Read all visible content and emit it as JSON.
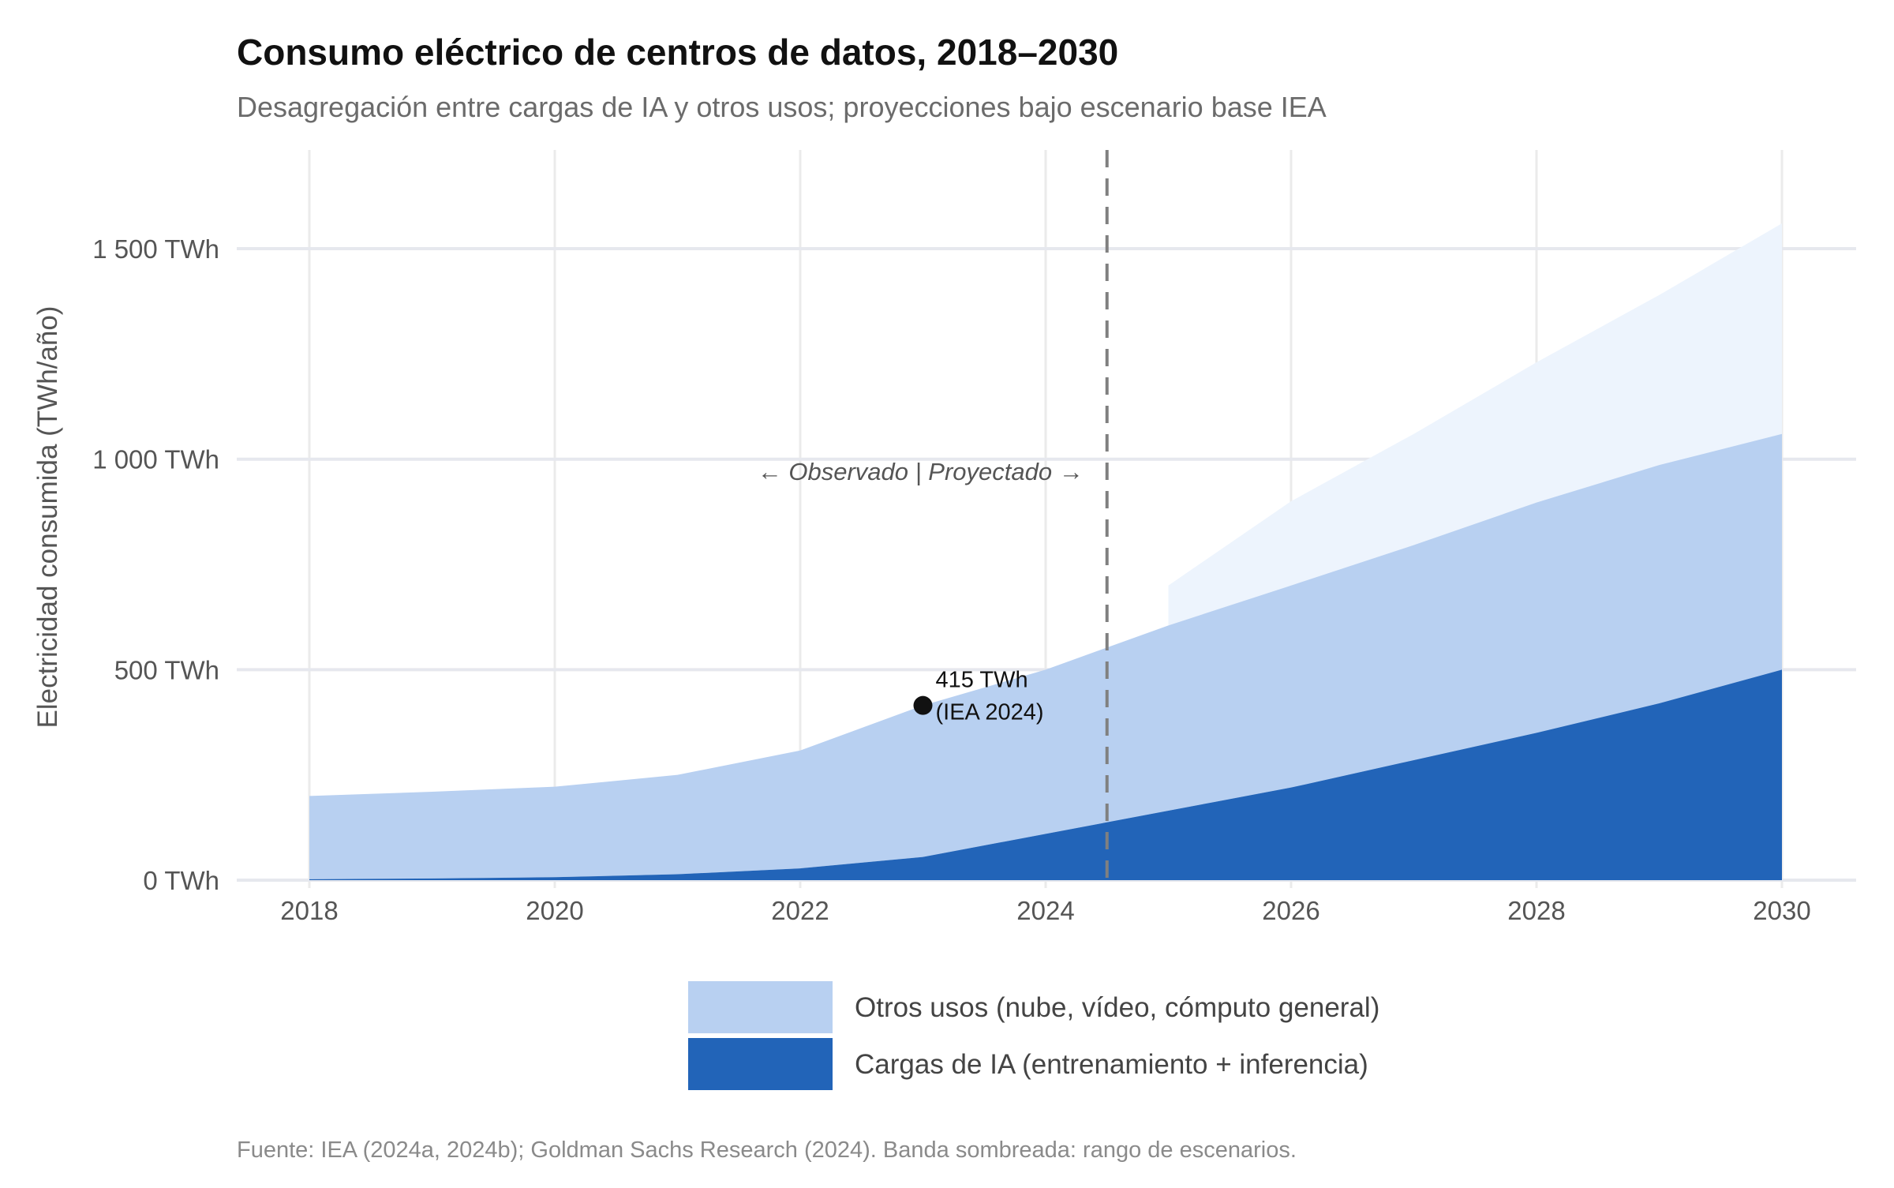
{
  "chart_data": {
    "type": "area",
    "title": "Consumo eléctrico de centros de datos, 2018–2030",
    "subtitle": "Desagregación entre cargas de IA y otros usos; proyecciones bajo escenario base IEA",
    "xlabel": "",
    "ylabel": "Electricidad consumida (TWh/año)",
    "xlim": [
      2018,
      2030
    ],
    "ylim": [
      0,
      1700
    ],
    "x_ticks": [
      2018,
      2020,
      2022,
      2024,
      2026,
      2028,
      2030
    ],
    "x_tick_labels": [
      "2018",
      "2020",
      "2022",
      "2024",
      "2026",
      "2028",
      "2030"
    ],
    "y_ticks": [
      0,
      500,
      1000,
      1500
    ],
    "y_tick_labels": [
      "0 TWh",
      "500 TWh",
      "1 000 TWh",
      "1 500 TWh"
    ],
    "grid": true,
    "stacked": true,
    "x": [
      2018,
      2019,
      2020,
      2021,
      2022,
      2023,
      2024,
      2025,
      2026,
      2027,
      2028,
      2029,
      2030
    ],
    "series": [
      {
        "name": "Cargas de IA (entrenamiento + inferencia)",
        "color": "#2264B8",
        "values": [
          2,
          4,
          7,
          14,
          28,
          55,
          110,
          165,
          220,
          285,
          350,
          420,
          500
        ]
      },
      {
        "name": "Otros usos (nube, vídeo, cómputo general)",
        "color": "#B8D0F1",
        "values": [
          198,
          206,
          215,
          236,
          280,
          360,
          390,
          440,
          480,
          511,
          547,
          566,
          560
        ]
      }
    ],
    "scenario_band": {
      "color": "#EDF4FD",
      "x": [
        2025,
        2026,
        2027,
        2028,
        2029,
        2030
      ],
      "lower": [
        605,
        700,
        796,
        897,
        960,
        990
      ],
      "upper": [
        700,
        900,
        1060,
        1230,
        1390,
        1560
      ]
    },
    "vline": {
      "x": 2024.5,
      "style": "dashed",
      "color": "#808080"
    },
    "annotations": {
      "period_label": "← Observado  |  Proyectado →",
      "point": {
        "x": 2023,
        "y": 415,
        "label_line1": "415 TWh",
        "label_line2": "(IEA 2024)"
      }
    },
    "legend": {
      "placement": "bottom",
      "entries": [
        "Otros usos (nube, vídeo, cómputo general)",
        "Cargas de IA (entrenamiento + inferencia)"
      ]
    },
    "caption": "Fuente: IEA (2024a, 2024b); Goldman Sachs Research (2024). Banda sombreada: rango de escenarios."
  }
}
